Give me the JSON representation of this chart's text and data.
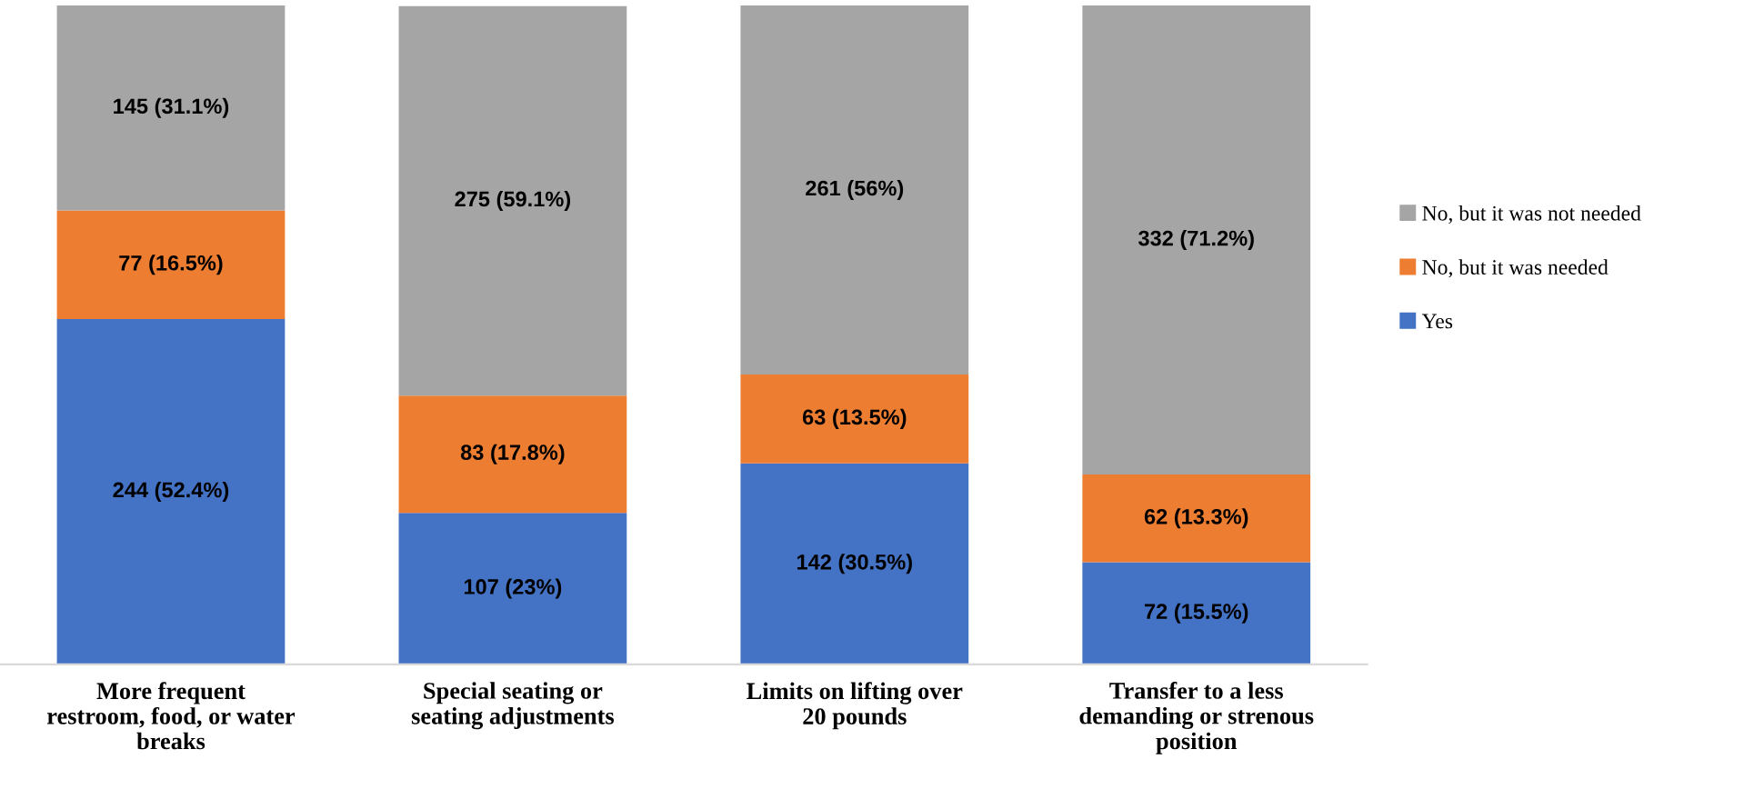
{
  "chart_data": {
    "type": "bar",
    "stacked": true,
    "legend": "right",
    "grid": false,
    "categories": [
      "More frequent\nrestroom, food, or water\nbreaks",
      "Special seating or\nseating adjustments",
      "Limits on lifting over\n20 pounds",
      "Transfer to a less\ndemanding or strenous\nposition"
    ],
    "series": [
      {
        "name": "Yes",
        "color": "#4472c4",
        "values": [
          52.4,
          23,
          30.5,
          15.5
        ],
        "value_labels": [
          "244 (52.4%)",
          "107 (23%)",
          "142 (30.5%)",
          "72 (15.5%)"
        ]
      },
      {
        "name": "No, but it was needed",
        "color": "#ed7d31",
        "values": [
          16.5,
          17.8,
          13.5,
          13.3
        ],
        "value_labels": [
          "77 (16.5%)",
          "83 (17.8%)",
          "63 (13.5%)",
          "62 (13.3%)"
        ]
      },
      {
        "name": "No, but it was not needed",
        "color": "#a5a5a5",
        "values": [
          31.1,
          59.1,
          56,
          71.2
        ],
        "value_labels": [
          "145 (31.1%)",
          "275 (59.1%)",
          "261 (56%)",
          "332 (71.2%)"
        ]
      }
    ]
  }
}
